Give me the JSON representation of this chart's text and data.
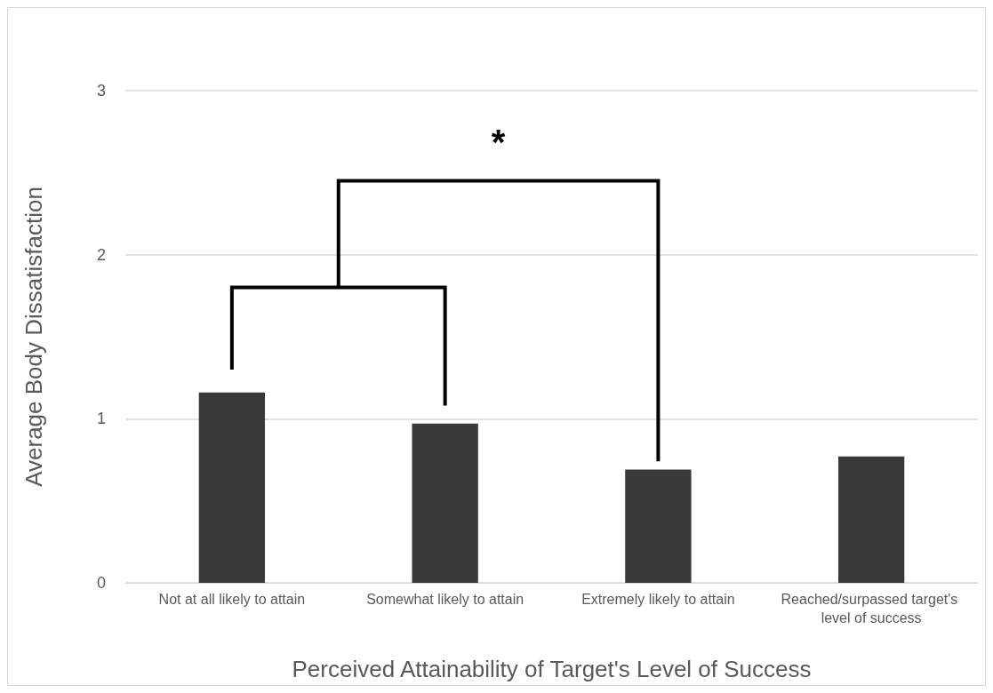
{
  "chart_data": {
    "type": "bar",
    "xlabel": "Perceived Attainability of Target's Level of Success",
    "ylabel": "Average Body Dissatisfaction",
    "categories": [
      "Not at all likely to attain",
      "Somewhat likely to attain",
      "Extremely likely to attain",
      "Reached/surpassed target's level of success"
    ],
    "values": [
      1.16,
      0.97,
      0.69,
      0.77
    ],
    "color": "#3a3a3a",
    "ylim": [
      0,
      3
    ],
    "yticks": [
      0,
      1,
      2,
      3
    ],
    "grid": "y",
    "annotations": [
      "*"
    ]
  }
}
